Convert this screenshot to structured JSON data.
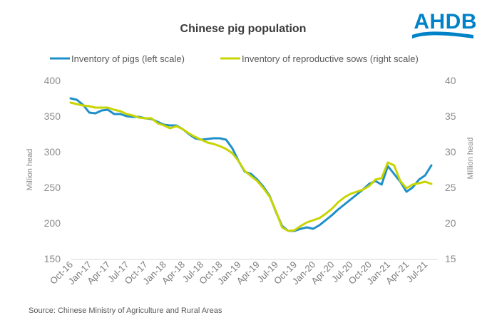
{
  "brand": {
    "logo_text": "AHDB",
    "logo_color": "#0082c8"
  },
  "chart_data": {
    "type": "line",
    "title": "Chinese pig population",
    "source": "Source: Chinese Ministry of Agriculture and Rural Areas",
    "ylabel_left": "Million head",
    "ylabel_right": "Million head",
    "ylim_left": [
      150,
      400
    ],
    "ylim_right": [
      15,
      40
    ],
    "yticks_left": [
      "150",
      "200",
      "250",
      "300",
      "350",
      "400"
    ],
    "yticks_right": [
      "15",
      "20",
      "25",
      "30",
      "35",
      "40"
    ],
    "x_tick_labels": [
      "Oct-16",
      "Jan-17",
      "Apr-17",
      "Jul-17",
      "Oct-17",
      "Jan-18",
      "Apr-18",
      "Jul-18",
      "Oct-18",
      "Jan-19",
      "Apr-19",
      "Jul-19",
      "Oct-19",
      "Jan-20",
      "Apr-20",
      "Jul-20",
      "Oct-20",
      "Jan-21",
      "Apr-21",
      "Jul-21"
    ],
    "months": 59,
    "series": [
      {
        "name": "Inventory of pigs (left scale)",
        "axis": "left",
        "color": "#1f8fc8",
        "values": [
          376,
          374,
          367,
          356,
          355,
          359,
          360,
          354,
          354,
          351,
          350,
          350,
          348,
          347,
          343,
          339,
          338,
          338,
          333,
          326,
          320,
          318,
          319,
          320,
          320,
          318,
          306,
          288,
          273,
          270,
          262,
          252,
          239,
          217,
          197,
          190,
          190,
          193,
          195,
          193,
          198,
          205,
          212,
          220,
          227,
          234,
          241,
          248,
          256,
          260,
          255,
          281,
          270,
          259,
          245,
          251,
          262,
          268,
          282
        ]
      },
      {
        "name": "Inventory of reproductive sows (right scale)",
        "axis": "right",
        "color": "#c8d400",
        "values": [
          37.0,
          36.8,
          36.6,
          36.5,
          36.3,
          36.3,
          36.3,
          36.0,
          35.8,
          35.4,
          35.2,
          34.9,
          34.8,
          34.8,
          34.1,
          33.8,
          33.4,
          33.7,
          33.3,
          32.7,
          32.2,
          31.8,
          31.4,
          31.2,
          30.9,
          30.5,
          29.9,
          28.8,
          27.4,
          26.7,
          26.0,
          25.0,
          23.8,
          21.8,
          19.5,
          19.0,
          19.1,
          19.7,
          20.2,
          20.5,
          20.8,
          21.4,
          22.1,
          23.0,
          23.7,
          24.2,
          24.5,
          24.8,
          25.3,
          26.2,
          26.4,
          28.6,
          28.2,
          26.0,
          25.0,
          25.5,
          25.7,
          25.9,
          25.6
        ]
      }
    ]
  }
}
